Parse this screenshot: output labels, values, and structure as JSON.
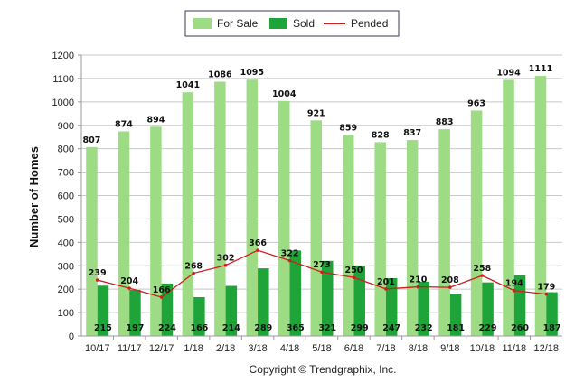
{
  "legend": {
    "for_sale": "For Sale",
    "sold": "Sold",
    "pended": "Pended"
  },
  "copyright": "Copyright © Trendgraphix, Inc.",
  "colors": {
    "for_sale": "#9ddc85",
    "sold": "#1fa43a",
    "pended": "#cc1f1f",
    "grid": "#c8c8c8",
    "axis": "#9a9a9a"
  },
  "chart_data": {
    "type": "bar",
    "categories": [
      "10/17",
      "11/17",
      "12/17",
      "1/18",
      "2/18",
      "3/18",
      "4/18",
      "5/18",
      "6/18",
      "7/18",
      "8/18",
      "9/18",
      "10/18",
      "11/18",
      "12/18"
    ],
    "series": [
      {
        "name": "For Sale",
        "kind": "bar",
        "values": [
          807,
          874,
          894,
          1041,
          1086,
          1095,
          1004,
          921,
          859,
          828,
          837,
          883,
          963,
          1094,
          1111
        ]
      },
      {
        "name": "Sold",
        "kind": "bar",
        "values": [
          215,
          197,
          224,
          166,
          214,
          289,
          365,
          321,
          299,
          247,
          232,
          181,
          229,
          260,
          187
        ]
      },
      {
        "name": "Pended",
        "kind": "line",
        "values": [
          239,
          204,
          166,
          268,
          302,
          366,
          322,
          273,
          250,
          201,
          210,
          208,
          258,
          194,
          179
        ]
      }
    ],
    "xlabel": "",
    "ylabel": "Number of Homes",
    "ylim": [
      0,
      1200
    ],
    "yticks": [
      0,
      100,
      200,
      300,
      400,
      500,
      600,
      700,
      800,
      900,
      1000,
      1100,
      1200
    ],
    "grid": true,
    "legend_position": "top-center"
  }
}
